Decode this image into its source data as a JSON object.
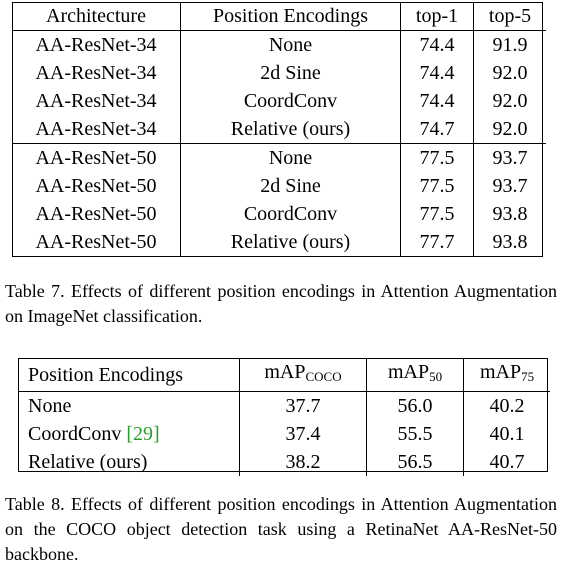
{
  "table7": {
    "headers": [
      "Architecture",
      "Position Encodings",
      "top-1",
      "top-5"
    ],
    "rows": [
      [
        "AA-ResNet-34",
        "None",
        "74.4",
        "91.9"
      ],
      [
        "AA-ResNet-34",
        "2d Sine",
        "74.4",
        "92.0"
      ],
      [
        "AA-ResNet-34",
        "CoordConv",
        "74.4",
        "92.0"
      ],
      [
        "AA-ResNet-34",
        "Relative (ours)",
        "74.7",
        "92.0"
      ],
      [
        "AA-ResNet-50",
        "None",
        "77.5",
        "93.7"
      ],
      [
        "AA-ResNet-50",
        "2d Sine",
        "77.5",
        "93.7"
      ],
      [
        "AA-ResNet-50",
        "CoordConv",
        "77.5",
        "93.8"
      ],
      [
        "AA-ResNet-50",
        "Relative (ours)",
        "77.7",
        "93.8"
      ]
    ],
    "caption": "Table 7. Effects of different position encodings in Attention Augmentation on ImageNet classification."
  },
  "table8": {
    "headers": {
      "pos": "Position Encodings",
      "m1_base": "mAP",
      "m1_sub": "COCO",
      "m2_base": "mAP",
      "m2_sub": "50",
      "m3_base": "mAP",
      "m3_sub": "75"
    },
    "rows": [
      {
        "name": "None",
        "cite": "",
        "v1": "37.7",
        "v2": "56.0",
        "v3": "40.2"
      },
      {
        "name": "CoordConv",
        "cite": "29",
        "v1": "37.4",
        "v2": "55.5",
        "v3": "40.1"
      },
      {
        "name": "Relative (ours)",
        "cite": "",
        "v1": "38.2",
        "v2": "56.5",
        "v3": "40.7"
      }
    ],
    "caption": "Table 8. Effects of different position encodings in Attention Augmentation on the COCO object detection task using a RetinaNet AA-ResNet-50 backbone."
  },
  "colors": {
    "citation": "#2a9d2a"
  }
}
